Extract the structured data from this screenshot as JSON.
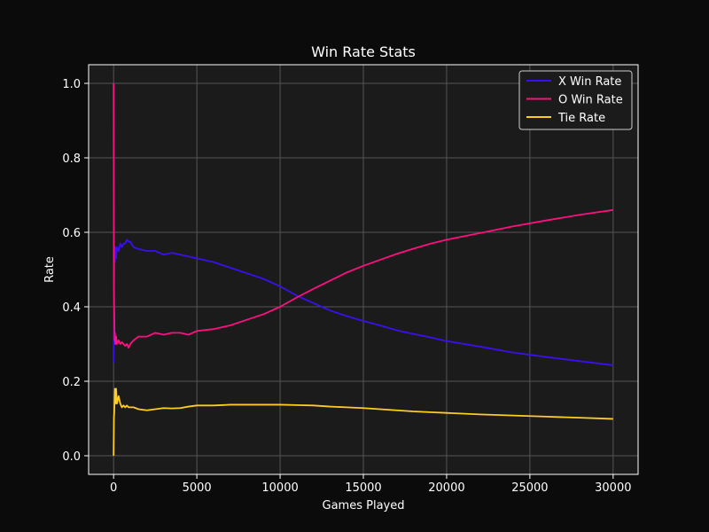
{
  "chart_data": {
    "type": "line",
    "title": "Win Rate Stats",
    "xlabel": "Games Played",
    "ylabel": "Rate",
    "xlim": [
      -1500,
      31500
    ],
    "ylim": [
      -0.05,
      1.05
    ],
    "x_ticks": [
      0,
      5000,
      10000,
      15000,
      20000,
      25000,
      30000
    ],
    "x_tick_labels": [
      "0",
      "5000",
      "10000",
      "15000",
      "20000",
      "25000",
      "30000"
    ],
    "y_ticks": [
      0.0,
      0.2,
      0.4,
      0.6,
      0.8,
      1.0
    ],
    "y_tick_labels": [
      "0.0",
      "0.2",
      "0.4",
      "0.6",
      "0.8",
      "1.0"
    ],
    "grid": true,
    "legend_position": "top-right",
    "colors": {
      "page_background": "#0b0b0b",
      "plot_background": "#1b1b1b",
      "grid": "#555555",
      "axis": "#ffffff"
    },
    "series": [
      {
        "name": "X Win Rate",
        "color": "#3a10f0",
        "x": [
          0,
          20,
          40,
          60,
          80,
          100,
          150,
          200,
          300,
          400,
          500,
          600,
          700,
          800,
          900,
          1000,
          1200,
          1500,
          2000,
          2500,
          3000,
          3500,
          4000,
          4500,
          5000,
          6000,
          7000,
          8000,
          9000,
          10000,
          11000,
          12000,
          13000,
          14000,
          15000,
          16000,
          17000,
          18000,
          19000,
          20000,
          22000,
          24000,
          26000,
          28000,
          30000
        ],
        "values": [
          0.25,
          0.4,
          0.5,
          0.55,
          0.52,
          0.56,
          0.53,
          0.56,
          0.55,
          0.57,
          0.56,
          0.57,
          0.57,
          0.58,
          0.575,
          0.575,
          0.56,
          0.555,
          0.55,
          0.55,
          0.54,
          0.545,
          0.54,
          0.535,
          0.53,
          0.52,
          0.505,
          0.49,
          0.475,
          0.455,
          0.43,
          0.41,
          0.39,
          0.375,
          0.362,
          0.35,
          0.337,
          0.327,
          0.318,
          0.308,
          0.293,
          0.277,
          0.265,
          0.254,
          0.243
        ]
      },
      {
        "name": "O Win Rate",
        "color": "#ff1080",
        "x": [
          0,
          20,
          40,
          60,
          80,
          100,
          150,
          200,
          300,
          400,
          500,
          600,
          700,
          800,
          900,
          1000,
          1200,
          1500,
          2000,
          2500,
          3000,
          3500,
          4000,
          4500,
          5000,
          6000,
          7000,
          8000,
          9000,
          10000,
          11000,
          12000,
          13000,
          14000,
          15000,
          16000,
          17000,
          18000,
          19000,
          20000,
          22000,
          24000,
          26000,
          28000,
          30000
        ],
        "values": [
          1.0,
          0.45,
          0.38,
          0.31,
          0.33,
          0.3,
          0.32,
          0.3,
          0.31,
          0.3,
          0.305,
          0.3,
          0.295,
          0.3,
          0.29,
          0.3,
          0.31,
          0.32,
          0.32,
          0.33,
          0.325,
          0.33,
          0.33,
          0.325,
          0.335,
          0.34,
          0.35,
          0.365,
          0.38,
          0.4,
          0.425,
          0.448,
          0.47,
          0.492,
          0.51,
          0.526,
          0.542,
          0.556,
          0.569,
          0.58,
          0.598,
          0.616,
          0.632,
          0.647,
          0.66
        ]
      },
      {
        "name": "Tie Rate",
        "color": "#ffcc22",
        "x": [
          0,
          20,
          40,
          60,
          80,
          100,
          150,
          200,
          300,
          400,
          500,
          600,
          700,
          800,
          900,
          1000,
          1200,
          1500,
          2000,
          2500,
          3000,
          3500,
          4000,
          4500,
          5000,
          6000,
          7000,
          8000,
          9000,
          10000,
          11000,
          12000,
          13000,
          14000,
          15000,
          16000,
          17000,
          18000,
          19000,
          20000,
          22000,
          24000,
          26000,
          28000,
          30000
        ],
        "values": [
          0.0,
          0.1,
          0.12,
          0.15,
          0.18,
          0.14,
          0.18,
          0.14,
          0.16,
          0.14,
          0.13,
          0.135,
          0.13,
          0.135,
          0.13,
          0.13,
          0.13,
          0.125,
          0.122,
          0.125,
          0.128,
          0.127,
          0.128,
          0.132,
          0.135,
          0.135,
          0.137,
          0.137,
          0.137,
          0.137,
          0.136,
          0.135,
          0.132,
          0.13,
          0.128,
          0.125,
          0.122,
          0.119,
          0.117,
          0.115,
          0.111,
          0.108,
          0.105,
          0.102,
          0.099
        ]
      }
    ]
  }
}
